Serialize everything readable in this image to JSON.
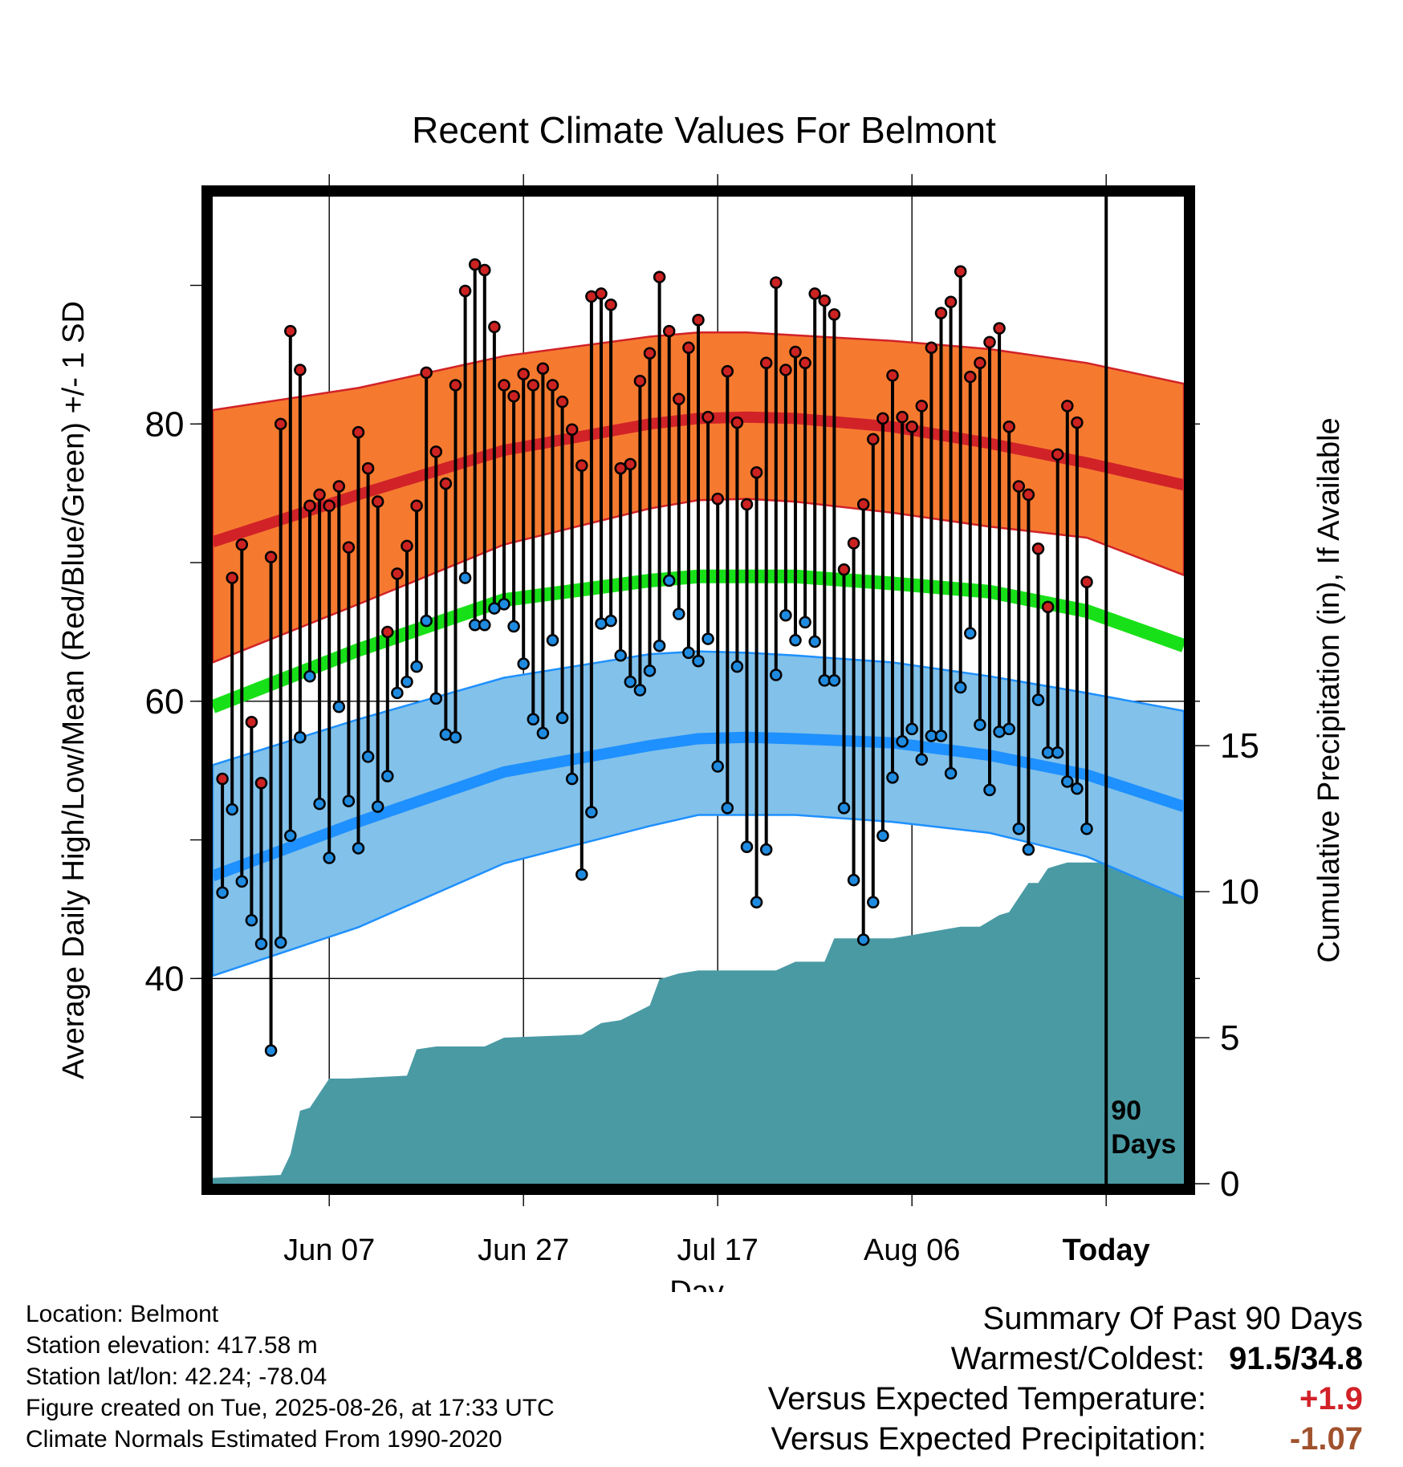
{
  "chart_data": {
    "type": "line",
    "title": "Recent Climate Values For Belmont",
    "xlabel": "Day",
    "ylabel": "Average Daily High/Low/Mean (Red/Blue/Green) +/- 1 SD",
    "y2label": "Cumulative Precipitation (in), If Available",
    "x_tick_labels": [
      "Jun 07",
      "Jun 27",
      "Jul 17",
      "Aug 06",
      "Today"
    ],
    "y_tick_labels": [
      "40",
      "60",
      "80"
    ],
    "y2_tick_labels": [
      "0",
      "5",
      "10",
      "15"
    ],
    "ylim": [
      25.2,
      96.4
    ],
    "y2lim": [
      0,
      33.8
    ],
    "xlim": [
      0,
      100
    ],
    "today_index": 90,
    "today_label": [
      "90",
      "Days"
    ],
    "grid": true,
    "colors": {
      "high_band": "#f57a30",
      "high_line": "#d12228",
      "low_band": "#82c1ea",
      "low_line": "#1e90ff",
      "mean_line": "#18e018",
      "precip": "#4a9aa4",
      "high_point": "#cc2222",
      "low_point": "#1f8be0"
    },
    "normals": {
      "x": [
        0,
        15,
        30,
        45,
        50,
        55,
        60,
        70,
        80,
        90,
        100
      ],
      "high_mean": [
        71.5,
        74.9,
        78.1,
        80.0,
        80.4,
        80.5,
        80.4,
        79.8,
        78.6,
        77.2,
        75.6
      ],
      "high_upper": [
        81.0,
        82.6,
        84.9,
        86.3,
        86.6,
        86.6,
        86.4,
        86.0,
        85.4,
        84.4,
        82.9
      ],
      "high_lower": [
        62.8,
        67.0,
        71.3,
        73.9,
        74.5,
        74.6,
        74.4,
        73.6,
        72.6,
        71.8,
        69.1
      ],
      "mean": [
        59.6,
        63.7,
        67.3,
        68.7,
        69.0,
        69.0,
        69.0,
        68.5,
        67.9,
        66.5,
        64.0
      ],
      "low_mean": [
        47.4,
        51.3,
        54.9,
        56.8,
        57.3,
        57.4,
        57.3,
        57.0,
        56.1,
        54.7,
        52.4
      ],
      "low_upper": [
        55.4,
        58.7,
        61.7,
        63.4,
        63.6,
        63.5,
        63.3,
        62.8,
        61.8,
        60.6,
        59.3
      ],
      "low_lower": [
        40.2,
        43.7,
        48.3,
        51.0,
        51.8,
        51.8,
        51.8,
        51.3,
        50.5,
        48.8,
        45.8
      ]
    },
    "high": [
      54.4,
      68.9,
      71.3,
      58.5,
      54.1,
      70.4,
      80.0,
      86.7,
      83.9,
      74.1,
      74.9,
      74.1,
      75.5,
      71.1,
      79.4,
      76.8,
      74.4,
      65.0,
      69.2,
      71.2,
      74.1,
      83.7,
      78.0,
      75.7,
      82.8,
      89.6,
      91.5,
      91.1,
      87.0,
      82.8,
      82.0,
      83.6,
      82.8,
      84.0,
      82.8,
      81.6,
      79.6,
      77.0,
      89.2,
      89.4,
      88.6,
      76.8,
      77.1,
      83.1,
      85.1,
      90.6,
      86.7,
      81.8,
      85.5,
      87.5,
      80.5,
      74.6,
      83.8,
      80.1,
      74.2,
      76.5,
      84.4,
      90.2,
      83.9,
      85.2,
      84.4,
      89.4,
      88.9,
      87.9,
      69.5,
      71.4,
      74.2,
      78.9,
      80.4,
      83.5,
      80.5,
      79.8,
      81.3,
      85.5,
      88.0,
      88.8,
      91.0,
      83.4,
      84.4,
      85.9,
      86.9,
      79.8,
      75.5,
      74.9,
      71.0,
      66.8,
      77.8,
      81.3,
      80.1,
      68.6
    ],
    "low": [
      46.2,
      52.2,
      47.0,
      44.2,
      42.5,
      34.8,
      42.6,
      50.3,
      57.4,
      61.8,
      52.6,
      48.7,
      59.6,
      52.8,
      49.4,
      56.0,
      52.4,
      54.6,
      60.6,
      61.4,
      62.5,
      65.8,
      60.2,
      57.6,
      57.4,
      68.9,
      65.5,
      65.5,
      66.7,
      67.0,
      65.4,
      62.7,
      58.7,
      57.7,
      64.4,
      58.8,
      54.4,
      47.5,
      52.0,
      65.6,
      65.8,
      63.3,
      61.4,
      60.8,
      62.2,
      64.0,
      68.7,
      66.3,
      63.5,
      62.9,
      64.5,
      55.3,
      52.3,
      62.5,
      49.5,
      45.5,
      49.3,
      61.9,
      66.2,
      64.4,
      65.7,
      64.3,
      61.5,
      61.5,
      52.3,
      47.1,
      42.8,
      45.5,
      50.3,
      54.5,
      57.1,
      58.0,
      55.8,
      57.5,
      57.5,
      54.8,
      61.0,
      64.9,
      58.3,
      53.6,
      57.8,
      58.0,
      50.8,
      49.3,
      60.1,
      56.3,
      56.3,
      54.2,
      53.7,
      50.8
    ],
    "precip_cumulative": {
      "x": [
        0,
        7.0,
        8.0,
        9.0,
        10.0,
        12.0,
        14.0,
        20.0,
        21.0,
        23.0,
        28.0,
        30.0,
        38.0,
        40.0,
        42.0,
        45.0,
        46.0,
        48.0,
        50.0,
        58.0,
        60.0,
        63.0,
        64.0,
        70.0,
        77.0,
        79.0,
        81.0,
        82.0,
        83.0,
        84.0,
        85.0,
        86.0,
        87.0,
        88.0,
        89.0,
        90.0,
        100
      ],
      "y": [
        0.2,
        0.3,
        1.0,
        2.5,
        2.6,
        3.6,
        3.6,
        3.7,
        4.6,
        4.7,
        4.7,
        5.0,
        5.1,
        5.5,
        5.6,
        6.1,
        7.0,
        7.2,
        7.3,
        7.3,
        7.6,
        7.6,
        8.4,
        8.4,
        8.8,
        8.8,
        9.2,
        9.3,
        9.8,
        10.3,
        10.3,
        10.8,
        10.9,
        11.0,
        11.0,
        11.0,
        11.0
      ]
    }
  },
  "footer": {
    "location": "Location: Belmont",
    "elevation": "Station elevation: 417.58 m",
    "latlon": "Station lat/lon: 42.24; -78.04",
    "created": "Figure created on Tue, 2025-08-26, at 17:33 UTC",
    "normals": "Climate Normals Estimated From 1990-2020"
  },
  "summary": {
    "heading": "Summary Of Past 90 Days",
    "warmest_coldest_label": "Warmest/Coldest:",
    "warmest_coldest_value": "91.5/34.8",
    "temp_label": "Versus Expected Temperature:",
    "temp_value": "+1.9",
    "temp_color": "#d12228",
    "precip_label": "Versus Expected Precipitation:",
    "precip_value": "-1.07",
    "precip_color": "#a0522d"
  }
}
